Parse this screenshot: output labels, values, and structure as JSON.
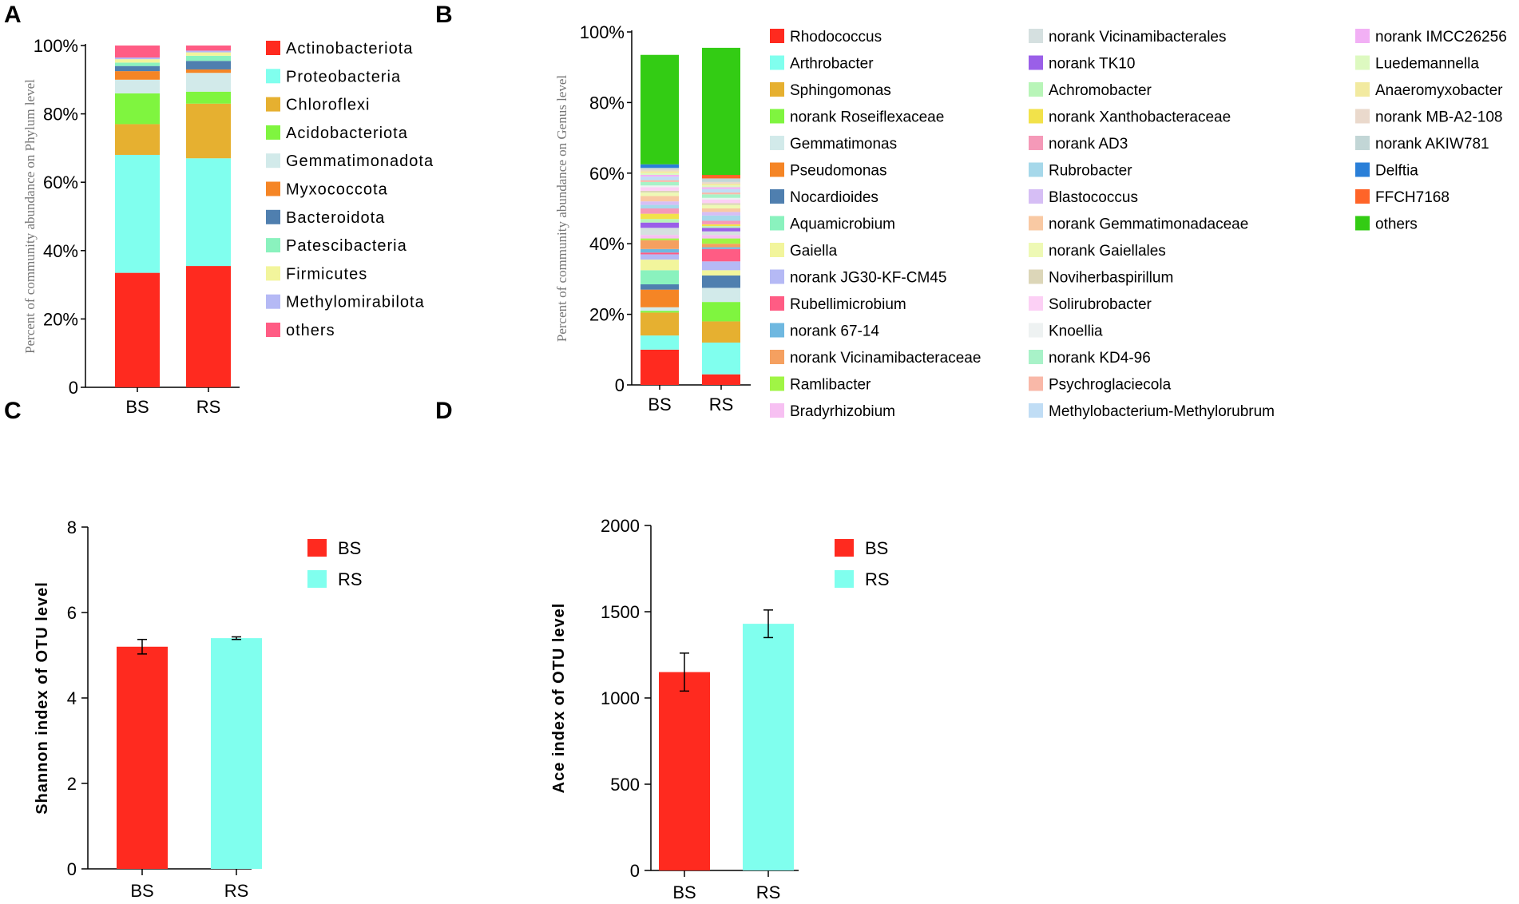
{
  "panels": {
    "a": "A",
    "b": "B",
    "c": "C",
    "d": "D"
  },
  "chart_data": [
    {
      "id": "A",
      "type": "bar",
      "stacked": true,
      "title": "",
      "ylabel": "Percent of community abundance on Phylum level",
      "xlabel": "",
      "categories": [
        "BS",
        "RS"
      ],
      "ylim": [
        0,
        100
      ],
      "yticks": [
        "0",
        "20%",
        "40%",
        "60%",
        "80%",
        "100%"
      ],
      "legend_position": "right",
      "series": [
        {
          "name": "Actinobacteriota",
          "color": "#FF2A1F",
          "values": [
            33.5,
            35.5
          ]
        },
        {
          "name": "Proteobacteria",
          "color": "#80FFEE",
          "values": [
            34.5,
            31.5
          ]
        },
        {
          "name": "Chloroflexi",
          "color": "#E6B030",
          "values": [
            9.0,
            16.0
          ]
        },
        {
          "name": "Acidobacteriota",
          "color": "#7FF53F",
          "values": [
            9.0,
            3.5
          ]
        },
        {
          "name": "Gemmatimonadota",
          "color": "#D2EAEA",
          "values": [
            4.0,
            5.5
          ]
        },
        {
          "name": "Myxococcota",
          "color": "#F58525",
          "values": [
            2.5,
            1.0
          ]
        },
        {
          "name": "Bacteroidota",
          "color": "#4F7FAF",
          "values": [
            1.5,
            2.5
          ]
        },
        {
          "name": "Patescibacteria",
          "color": "#8AF2BE",
          "values": [
            1.0,
            1.5
          ]
        },
        {
          "name": "Firmicutes",
          "color": "#F2F59C",
          "values": [
            1.0,
            1.0
          ]
        },
        {
          "name": "Methylomirabilota",
          "color": "#B5B9F5",
          "values": [
            0.5,
            0.5
          ]
        },
        {
          "name": "others",
          "color": "#FF5C84",
          "values": [
            3.5,
            1.5
          ]
        }
      ]
    },
    {
      "id": "B",
      "type": "bar",
      "stacked": true,
      "title": "",
      "ylabel": "Percent of community abundance on Genus  level",
      "xlabel": "",
      "categories": [
        "BS",
        "RS"
      ],
      "ylim": [
        0,
        100
      ],
      "yticks": [
        "0",
        "20%",
        "40%",
        "60%",
        "80%",
        "100%"
      ],
      "legend_position": "right",
      "series": [
        {
          "name": "Rhodococcus",
          "color": "#FF2A1F",
          "values": [
            10.0,
            3.0
          ]
        },
        {
          "name": "Arthrobacter",
          "color": "#80FFEE",
          "values": [
            4.0,
            9.0
          ]
        },
        {
          "name": "Sphingomonas",
          "color": "#E6B030",
          "values": [
            6.5,
            6.0
          ]
        },
        {
          "name": "norank Roseiflexaceae",
          "color": "#7FF53F",
          "values": [
            0.5,
            5.5
          ]
        },
        {
          "name": "Gemmatimonas",
          "color": "#D2EAEA",
          "values": [
            1.0,
            4.0
          ]
        },
        {
          "name": "Pseudomonas",
          "color": "#F58525",
          "values": [
            5.0,
            0.0
          ]
        },
        {
          "name": "Nocardioides",
          "color": "#4F7FAF",
          "values": [
            1.5,
            3.5
          ]
        },
        {
          "name": "Aquamicrobium",
          "color": "#8AF2BE",
          "values": [
            4.0,
            0.0
          ]
        },
        {
          "name": "Gaiella",
          "color": "#F2F59C",
          "values": [
            3.0,
            1.5
          ]
        },
        {
          "name": "norank JG30-KF-CM45",
          "color": "#B5B9F5",
          "values": [
            1.5,
            2.5
          ]
        },
        {
          "name": "Rubellimicrobium",
          "color": "#FF5C84",
          "values": [
            0.5,
            3.5
          ]
        },
        {
          "name": "norank  67-14",
          "color": "#6FB8E0",
          "values": [
            1.0,
            0.5
          ]
        },
        {
          "name": "norank Vicinamibacteraceae",
          "color": "#F5A060",
          "values": [
            2.5,
            1.0
          ]
        },
        {
          "name": "Ramlibacter",
          "color": "#A0F545",
          "values": [
            0.5,
            1.5
          ]
        },
        {
          "name": "Bradyrhizobium",
          "color": "#F7C0F2",
          "values": [
            1.0,
            1.0
          ]
        },
        {
          "name": "norank  Vicinamibacterales",
          "color": "#D5E0E0",
          "values": [
            2.0,
            1.0
          ]
        },
        {
          "name": "norank  TK10",
          "color": "#9A5FE8",
          "values": [
            1.5,
            1.0
          ]
        },
        {
          "name": "Achromobacter",
          "color": "#B8F5B8",
          "values": [
            1.0,
            0.5
          ]
        },
        {
          "name": "norank  Xanthobacteraceae",
          "color": "#F2E24A",
          "values": [
            1.5,
            0.5
          ]
        },
        {
          "name": "norank  AD3",
          "color": "#F599B8",
          "values": [
            1.5,
            1.0
          ]
        },
        {
          "name": "Rubrobacter",
          "color": "#A6D8EA",
          "values": [
            1.0,
            1.5
          ]
        },
        {
          "name": "Blastococcus",
          "color": "#D6BEF5",
          "values": [
            1.0,
            1.0
          ]
        },
        {
          "name": "norank  Gemmatimonadaceae",
          "color": "#F9C9A3",
          "values": [
            1.5,
            1.0
          ]
        },
        {
          "name": "norank  Gaiellales",
          "color": "#EEF9B5",
          "values": [
            1.0,
            1.0
          ]
        },
        {
          "name": "Noviherbaspirillum",
          "color": "#DCD6B8",
          "values": [
            0.5,
            0.5
          ]
        },
        {
          "name": "Solirubrobacter",
          "color": "#FCD0F5",
          "values": [
            1.0,
            1.0
          ]
        },
        {
          "name": "Knoellia",
          "color": "#EEF2F2",
          "values": [
            0.5,
            0.5
          ]
        },
        {
          "name": "norank  KD4-96",
          "color": "#A8F2C8",
          "values": [
            1.0,
            1.0
          ]
        },
        {
          "name": "Psychroglaciecola",
          "color": "#F9B8A8",
          "values": [
            0.5,
            0.5
          ]
        },
        {
          "name": "Methylobacterium-Methylorubrum",
          "color": "#C0DDF5",
          "values": [
            1.0,
            1.0
          ]
        },
        {
          "name": "norank  IMCC26256",
          "color": "#F2B0F5",
          "values": [
            0.5,
            0.5
          ]
        },
        {
          "name": "Luedemannella",
          "color": "#DDF9C0",
          "values": [
            0.5,
            0.5
          ]
        },
        {
          "name": "Anaeromyxobacter",
          "color": "#F2EAA0",
          "values": [
            0.5,
            0.5
          ]
        },
        {
          "name": "norank  MB-A2-108",
          "color": "#EAD9CC",
          "values": [
            0.5,
            0.5
          ]
        },
        {
          "name": "norank AKIW781",
          "color": "#C2D6D6",
          "values": [
            0.5,
            1.0
          ]
        },
        {
          "name": "Delftia",
          "color": "#2A7FD8",
          "values": [
            1.0,
            0.0
          ]
        },
        {
          "name": "FFCH7168",
          "color": "#FF6428",
          "values": [
            0.0,
            1.0
          ]
        },
        {
          "name": "others",
          "color": "#33CC14",
          "values": [
            31.0,
            36.0
          ]
        }
      ]
    },
    {
      "id": "C",
      "type": "bar",
      "title": "",
      "ylabel": "Shannon index of OTU level",
      "xlabel": "",
      "categories": [
        "BS",
        "RS"
      ],
      "values": [
        5.2,
        5.4
      ],
      "errors": [
        0.17,
        0.03
      ],
      "colors": [
        "#FF2A1F",
        "#80FFEE"
      ],
      "ylim": [
        0,
        8
      ],
      "yticks": [
        "0",
        "2",
        "4",
        "6",
        "8"
      ],
      "legend": [
        "BS",
        "RS"
      ],
      "legend_position": "top-right"
    },
    {
      "id": "D",
      "type": "bar",
      "title": "",
      "ylabel": "Ace index of OTU level",
      "xlabel": "",
      "categories": [
        "BS",
        "RS"
      ],
      "values": [
        1150,
        1430
      ],
      "errors": [
        110,
        80
      ],
      "colors": [
        "#FF2A1F",
        "#80FFEE"
      ],
      "ylim": [
        0,
        2000
      ],
      "yticks": [
        "0",
        "500",
        "1000",
        "1500",
        "2000"
      ],
      "legend": [
        "BS",
        "RS"
      ],
      "legend_position": "top-right"
    }
  ]
}
